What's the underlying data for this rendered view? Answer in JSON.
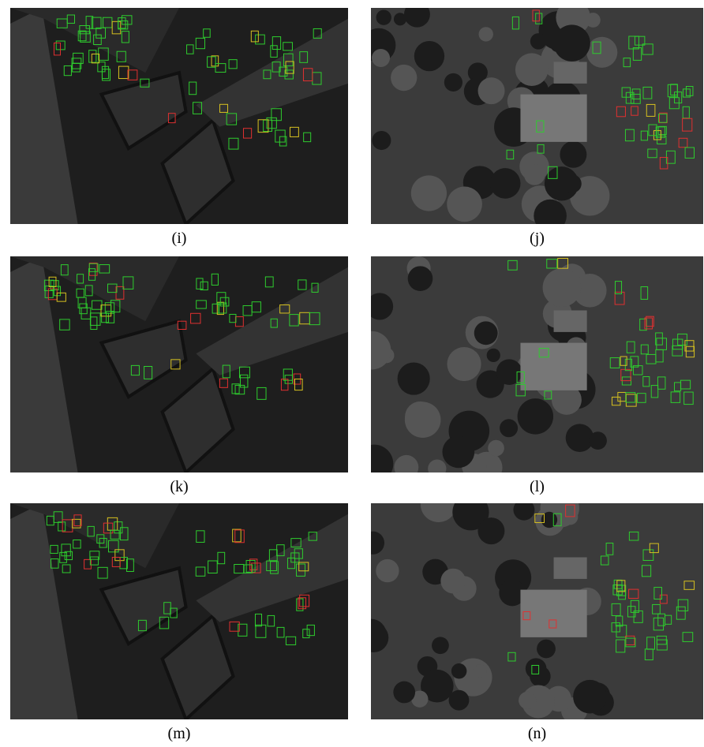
{
  "panels": [
    {
      "caption": "(i)"
    },
    {
      "caption": "(j)"
    },
    {
      "caption": "(k)"
    },
    {
      "caption": "(l)"
    },
    {
      "caption": "(m)"
    },
    {
      "caption": "(n)"
    }
  ]
}
